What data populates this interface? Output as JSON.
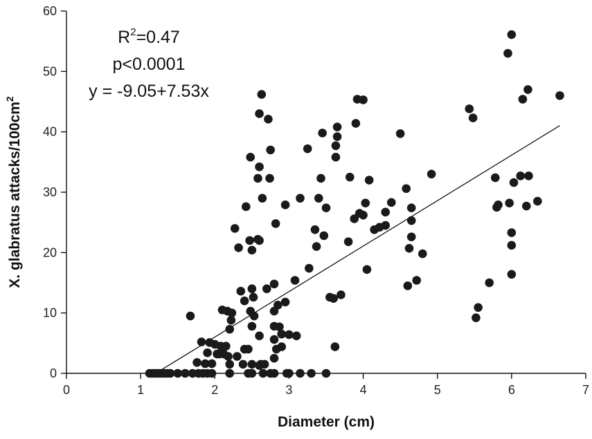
{
  "chart_data": {
    "type": "scatter",
    "xlabel": "Diameter (cm)",
    "ylabel_main": "X. glabratus attacks/100cm",
    "ylabel_sup": "2",
    "xlim": [
      0,
      7
    ],
    "ylim": [
      0,
      60
    ],
    "xticks": [
      0,
      1,
      2,
      3,
      4,
      5,
      6,
      7
    ],
    "yticks": [
      0,
      10,
      20,
      30,
      40,
      50,
      60
    ],
    "grid": false,
    "annotations": {
      "r2_prefix": "R",
      "r2_sup": "2",
      "r2_value": "=0.47",
      "p_value": "p<0.0001",
      "equation": "y = -9.05+7.53x"
    },
    "fit_line": {
      "intercept": -9.05,
      "slope": 7.53,
      "x_range": [
        1.2,
        6.65
      ]
    },
    "point_color": "#1a1a1a",
    "points": [
      [
        1.12,
        0
      ],
      [
        1.16,
        0
      ],
      [
        1.2,
        0
      ],
      [
        1.24,
        0
      ],
      [
        1.28,
        0
      ],
      [
        1.32,
        0
      ],
      [
        1.36,
        0
      ],
      [
        1.4,
        0
      ],
      [
        1.5,
        0
      ],
      [
        1.6,
        0
      ],
      [
        1.7,
        0
      ],
      [
        1.78,
        0
      ],
      [
        1.84,
        0
      ],
      [
        1.9,
        0
      ],
      [
        1.96,
        0
      ],
      [
        1.67,
        9.5
      ],
      [
        1.76,
        1.8
      ],
      [
        1.82,
        5.2
      ],
      [
        1.87,
        1.6
      ],
      [
        1.9,
        3.4
      ],
      [
        1.93,
        5.1
      ],
      [
        1.96,
        1.6
      ],
      [
        2.0,
        4.8
      ],
      [
        2.03,
        3.2
      ],
      [
        2.06,
        3.2
      ],
      [
        2.08,
        4.5
      ],
      [
        2.1,
        10.5
      ],
      [
        2.12,
        3.2
      ],
      [
        2.15,
        4.5
      ],
      [
        2.17,
        10.3
      ],
      [
        2.18,
        2.8
      ],
      [
        2.2,
        7.3
      ],
      [
        2.2,
        1.5
      ],
      [
        2.2,
        0
      ],
      [
        2.22,
        8.8
      ],
      [
        2.23,
        10.0
      ],
      [
        2.27,
        24.0
      ],
      [
        2.3,
        2.8
      ],
      [
        2.32,
        20.8
      ],
      [
        2.35,
        13.6
      ],
      [
        2.38,
        1.5
      ],
      [
        2.4,
        12.0
      ],
      [
        2.4,
        4.0
      ],
      [
        2.42,
        27.6
      ],
      [
        2.45,
        0
      ],
      [
        2.45,
        4.0
      ],
      [
        2.47,
        22.0
      ],
      [
        2.48,
        35.8
      ],
      [
        2.48,
        10.3
      ],
      [
        2.5,
        20.4
      ],
      [
        2.5,
        14.0
      ],
      [
        2.5,
        7.8
      ],
      [
        2.5,
        1.5
      ],
      [
        2.5,
        0
      ],
      [
        2.52,
        12.6
      ],
      [
        2.53,
        9.5
      ],
      [
        2.58,
        32.3
      ],
      [
        2.58,
        22.2
      ],
      [
        2.6,
        43.0
      ],
      [
        2.6,
        34.2
      ],
      [
        2.6,
        22.0
      ],
      [
        2.6,
        6.2
      ],
      [
        2.6,
        1.3
      ],
      [
        2.62,
        1.5
      ],
      [
        2.63,
        46.2
      ],
      [
        2.64,
        29.0
      ],
      [
        2.65,
        0
      ],
      [
        2.67,
        1.5
      ],
      [
        2.7,
        14.0
      ],
      [
        2.72,
        42.1
      ],
      [
        2.74,
        32.3
      ],
      [
        2.75,
        37.0
      ],
      [
        2.75,
        0
      ],
      [
        2.8,
        14.8
      ],
      [
        2.8,
        10.3
      ],
      [
        2.8,
        7.8
      ],
      [
        2.8,
        5.6
      ],
      [
        2.8,
        2.5
      ],
      [
        2.8,
        0
      ],
      [
        2.82,
        24.8
      ],
      [
        2.83,
        4.0
      ],
      [
        2.85,
        11.3
      ],
      [
        2.87,
        7.7
      ],
      [
        2.9,
        6.5
      ],
      [
        2.9,
        4.4
      ],
      [
        2.95,
        27.9
      ],
      [
        2.95,
        11.8
      ],
      [
        2.97,
        0
      ],
      [
        3.0,
        6.4
      ],
      [
        3.0,
        0
      ],
      [
        3.08,
        15.4
      ],
      [
        3.1,
        6.2
      ],
      [
        3.15,
        29.0
      ],
      [
        3.15,
        0
      ],
      [
        3.25,
        37.2
      ],
      [
        3.27,
        17.4
      ],
      [
        3.3,
        0
      ],
      [
        3.35,
        23.8
      ],
      [
        3.37,
        21.0
      ],
      [
        3.4,
        29.0
      ],
      [
        3.43,
        32.3
      ],
      [
        3.45,
        39.8
      ],
      [
        3.47,
        22.8
      ],
      [
        3.5,
        27.4
      ],
      [
        3.5,
        0
      ],
      [
        3.55,
        12.6
      ],
      [
        3.6,
        12.4
      ],
      [
        3.62,
        4.4
      ],
      [
        3.63,
        37.7
      ],
      [
        3.63,
        35.8
      ],
      [
        3.65,
        39.2
      ],
      [
        3.65,
        40.8
      ],
      [
        3.7,
        13.0
      ],
      [
        3.8,
        21.8
      ],
      [
        3.82,
        32.5
      ],
      [
        3.88,
        25.6
      ],
      [
        3.9,
        41.4
      ],
      [
        3.92,
        45.4
      ],
      [
        3.95,
        26.5
      ],
      [
        4.0,
        45.3
      ],
      [
        4.0,
        26.2
      ],
      [
        4.03,
        28.2
      ],
      [
        4.05,
        17.2
      ],
      [
        4.08,
        32.0
      ],
      [
        4.15,
        23.8
      ],
      [
        4.22,
        24.2
      ],
      [
        4.3,
        26.7
      ],
      [
        4.3,
        24.5
      ],
      [
        4.38,
        28.3
      ],
      [
        4.5,
        39.7
      ],
      [
        4.58,
        30.6
      ],
      [
        4.6,
        14.5
      ],
      [
        4.62,
        20.7
      ],
      [
        4.65,
        27.4
      ],
      [
        4.65,
        25.3
      ],
      [
        4.65,
        22.6
      ],
      [
        4.72,
        15.4
      ],
      [
        4.8,
        19.8
      ],
      [
        4.92,
        33.0
      ],
      [
        5.43,
        43.8
      ],
      [
        5.48,
        42.3
      ],
      [
        5.52,
        9.2
      ],
      [
        5.55,
        10.9
      ],
      [
        5.7,
        15.0
      ],
      [
        5.78,
        32.4
      ],
      [
        5.8,
        27.5
      ],
      [
        5.82,
        27.9
      ],
      [
        5.95,
        53.0
      ],
      [
        5.97,
        28.2
      ],
      [
        6.0,
        56.1
      ],
      [
        6.0,
        23.3
      ],
      [
        6.0,
        21.2
      ],
      [
        6.0,
        16.4
      ],
      [
        6.03,
        31.6
      ],
      [
        6.12,
        32.7
      ],
      [
        6.15,
        45.4
      ],
      [
        6.2,
        27.7
      ],
      [
        6.22,
        47.0
      ],
      [
        6.23,
        32.7
      ],
      [
        6.35,
        28.5
      ],
      [
        6.65,
        46.0
      ]
    ]
  }
}
